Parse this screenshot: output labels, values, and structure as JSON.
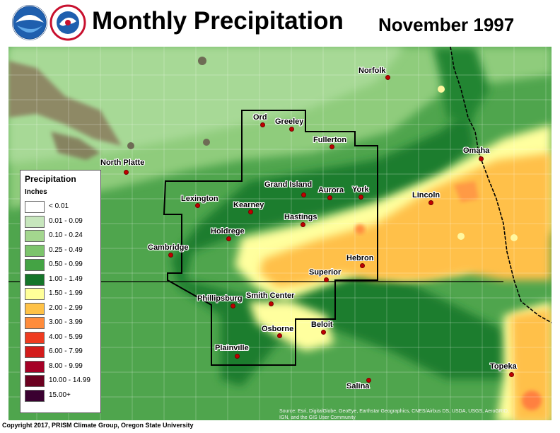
{
  "header": {
    "title": "Monthly Precipitation",
    "subtitle": "November 1997",
    "logos": [
      "noaa-logo",
      "national-weather-service-logo"
    ]
  },
  "legend": {
    "title": "Precipitation",
    "unit": "Inches",
    "items": [
      {
        "label": "< 0.01",
        "color": "#ffffff"
      },
      {
        "label": "0.01 - 0.09",
        "color": "#c7e6bd"
      },
      {
        "label": "0.10 - 0.24",
        "color": "#a3d68e"
      },
      {
        "label": "0.25 - 0.49",
        "color": "#7cc46c"
      },
      {
        "label": "0.50 - 0.99",
        "color": "#44a344"
      },
      {
        "label": "1.00 - 1.49",
        "color": "#15752a"
      },
      {
        "label": "1.50 - 1.99",
        "color": "#ffff99"
      },
      {
        "label": "2.00 - 2.99",
        "color": "#ffc247"
      },
      {
        "label": "3.00 - 3.99",
        "color": "#ff8c3c"
      },
      {
        "label": "4.00 - 5.99",
        "color": "#ef3b20"
      },
      {
        "label": "6.00 - 7.99",
        "color": "#d31b1b"
      },
      {
        "label": "8.00 - 9.99",
        "color": "#a50026"
      },
      {
        "label": "10.00 - 14.99",
        "color": "#6b0020"
      },
      {
        "label": "15.00+",
        "color": "#3a0030"
      }
    ]
  },
  "cities": {
    "norfolk": "Norfolk",
    "ord": "Ord",
    "greeley": "Greeley",
    "fullerton": "Fullerton",
    "north_platte": "North Platte",
    "omaha": "Omaha",
    "grand_island": "Grand Island",
    "aurora": "Aurora",
    "york": "York",
    "lincoln": "Lincoln",
    "lexington": "Lexington",
    "kearney": "Kearney",
    "hastings": "Hastings",
    "holdrege": "Holdrege",
    "cambridge": "Cambridge",
    "hebron": "Hebron",
    "superior": "Superior",
    "phillipsburg": "Phillipsburg",
    "smith_center": "Smith Center",
    "osborne": "Osborne",
    "beloit": "Beloit",
    "plainville": "Plainville",
    "topeka": "Topeka",
    "salina": "Salina"
  },
  "footer": {
    "copyright": "Copyright 2017, PRISM Climate Group, Oregon State University",
    "source_line1": "Source: Esri, DigitalGlobe, GeoEye, Earthstar Geographics, CNES/Airbus DS, USDA, USGS, AeroGRID,",
    "source_line2": "IGN, and the GIS User Community"
  }
}
